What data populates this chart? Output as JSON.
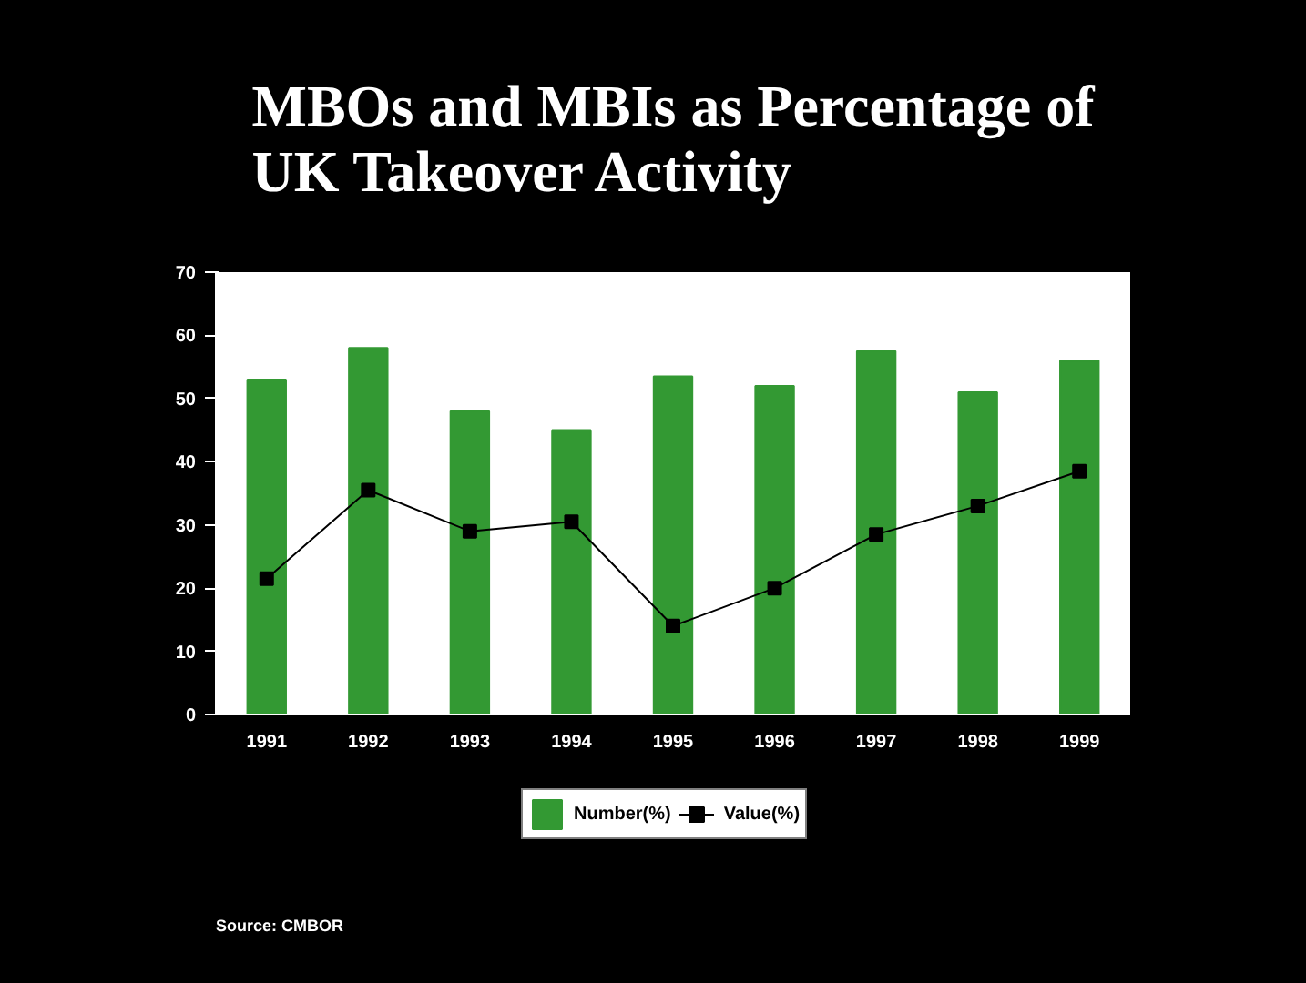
{
  "chart_data": {
    "type": "bar",
    "title": "MBOs and MBIs as Percentage of UK Takeover Activity",
    "categories": [
      "1991",
      "1992",
      "1993",
      "1994",
      "1995",
      "1996",
      "1997",
      "1998",
      "1999"
    ],
    "series": [
      {
        "name": "Number(%)",
        "color": "#339933",
        "values": [
          53,
          58,
          48,
          45,
          53.5,
          52,
          57.5,
          51,
          56
        ]
      },
      {
        "name": "Value(%)",
        "type": "line",
        "color": "#000000",
        "marker": "square",
        "values": [
          21.5,
          35.5,
          29,
          30.5,
          14,
          20,
          28.5,
          33,
          38.5
        ]
      }
    ],
    "ylim": [
      0,
      70
    ],
    "yticks": [
      0,
      10,
      20,
      30,
      40,
      50,
      60,
      70
    ],
    "legend": "bottom",
    "annotations": [
      "Source: CMBOR"
    ]
  }
}
